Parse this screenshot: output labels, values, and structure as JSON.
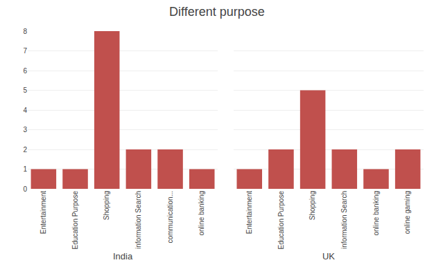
{
  "chart_data": [
    {
      "type": "bar",
      "title": "Different purpose",
      "x_label": "India",
      "categories": [
        "Entertainment",
        "Education Purpose",
        "Shopping",
        "information Search",
        "communication...",
        "online banking"
      ],
      "values": [
        1,
        1,
        8,
        2,
        2,
        1
      ],
      "color": "#c0504d",
      "ylim": [
        0,
        8
      ],
      "yticks": [
        0,
        1,
        2,
        3,
        4,
        5,
        6,
        7,
        8
      ],
      "grid": true
    },
    {
      "type": "bar",
      "x_label": "UK",
      "categories": [
        "Entertainment",
        "Education Purpose",
        "Shopping",
        "information Search",
        "online banking",
        "online gaming"
      ],
      "values": [
        1,
        2,
        5,
        2,
        1,
        2
      ],
      "color": "#c0504d",
      "ylim": [
        0,
        8
      ],
      "yticks": [
        0,
        1,
        2,
        3,
        4,
        5,
        6,
        7,
        8
      ],
      "grid": true,
      "tick_labels": "x"
    }
  ]
}
